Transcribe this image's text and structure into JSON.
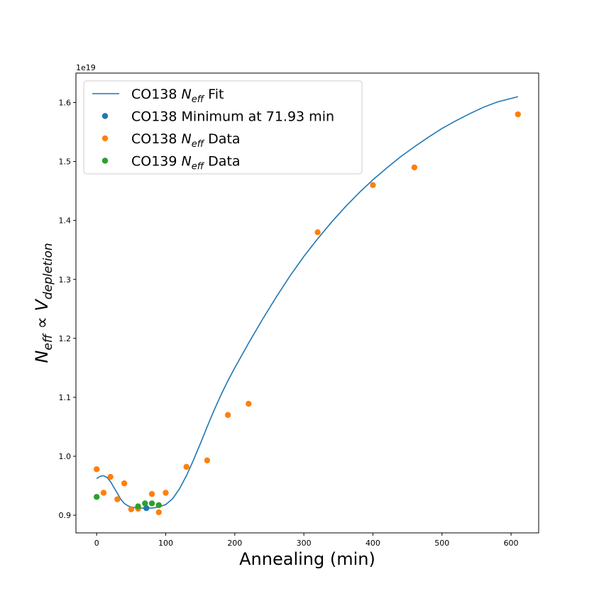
{
  "chart_data": {
    "type": "scatter",
    "title": "",
    "xlabel": "Annealing (min)",
    "ylabel": {
      "base": "N",
      "base_sub": "eff",
      "relation": "∝",
      "base2": "V",
      "base2_sub": "depletion"
    },
    "offset_text": "1e19",
    "xlim": [
      -30,
      640
    ],
    "ylim": [
      0.87,
      1.65
    ],
    "x_ticks": [
      0,
      100,
      200,
      300,
      400,
      500,
      600
    ],
    "x_tick_labels": [
      "0",
      "100",
      "200",
      "300",
      "400",
      "500",
      "600"
    ],
    "y_ticks": [
      0.9,
      1.0,
      1.1,
      1.2,
      1.3,
      1.4,
      1.5,
      1.6
    ],
    "y_tick_labels": [
      "0.9",
      "1.0",
      "1.1",
      "1.2",
      "1.3",
      "1.4",
      "1.5",
      "1.6"
    ],
    "grid": false,
    "legend_position": "top-left",
    "series": [
      {
        "name": "CO138 N_eff Fit",
        "legend": {
          "prefix": "CO138 ",
          "main": "N",
          "sub": "eff",
          "suffix": " Fit"
        },
        "kind": "line",
        "color": "#1f77b4",
        "x": [
          0,
          5,
          10,
          15,
          20,
          25,
          30,
          35,
          40,
          45,
          50,
          55,
          60,
          65,
          70,
          75,
          80,
          85,
          90,
          95,
          100,
          110,
          120,
          130,
          140,
          150,
          160,
          170,
          180,
          190,
          200,
          220,
          240,
          260,
          280,
          300,
          320,
          340,
          360,
          380,
          400,
          420,
          440,
          460,
          480,
          500,
          520,
          540,
          560,
          580,
          610
        ],
        "y": [
          0.962,
          0.966,
          0.967,
          0.964,
          0.957,
          0.947,
          0.937,
          0.927,
          0.92,
          0.916,
          0.914,
          0.913,
          0.912,
          0.912,
          0.912,
          0.912,
          0.912,
          0.913,
          0.914,
          0.916,
          0.918,
          0.928,
          0.945,
          0.967,
          0.993,
          1.021,
          1.05,
          1.078,
          1.104,
          1.128,
          1.15,
          1.192,
          1.232,
          1.27,
          1.306,
          1.339,
          1.369,
          1.397,
          1.423,
          1.447,
          1.469,
          1.489,
          1.508,
          1.525,
          1.541,
          1.556,
          1.569,
          1.581,
          1.592,
          1.601,
          1.61
        ]
      },
      {
        "name": "CO138 Minimum at 71.93 min",
        "legend": {
          "prefix": "CO138 Minimum at 71.93 min",
          "main": "",
          "sub": "",
          "suffix": ""
        },
        "kind": "scatter",
        "color": "#1f77b4",
        "x": [
          71.93
        ],
        "y": [
          0.912
        ]
      },
      {
        "name": "CO138 N_eff Data",
        "legend": {
          "prefix": "CO138 ",
          "main": "N",
          "sub": "eff",
          "suffix": " Data"
        },
        "kind": "scatter",
        "color": "#ff7f0e",
        "x": [
          0,
          10,
          20,
          30,
          40,
          50,
          60,
          80,
          90,
          100,
          130,
          160,
          190,
          220,
          320,
          400,
          460,
          610
        ],
        "y": [
          0.978,
          0.938,
          0.965,
          0.927,
          0.954,
          0.91,
          0.911,
          0.936,
          0.905,
          0.938,
          0.982,
          0.993,
          1.07,
          1.089,
          1.38,
          1.46,
          1.49,
          1.58
        ]
      },
      {
        "name": "CO139 N_eff Data",
        "legend": {
          "prefix": "CO139 ",
          "main": "N",
          "sub": "eff",
          "suffix": " Data"
        },
        "kind": "scatter",
        "color": "#2ca02c",
        "x": [
          0,
          60,
          70,
          80,
          90
        ],
        "y": [
          0.931,
          0.915,
          0.92,
          0.92,
          0.917
        ]
      }
    ]
  }
}
